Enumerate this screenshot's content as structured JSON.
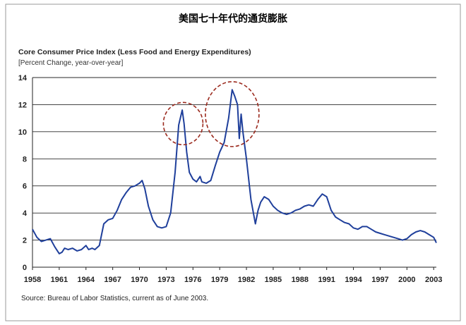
{
  "chart_data": {
    "type": "line",
    "title": "美国七十年代的通货膨胀",
    "subtitle": "Core Consumer Price Index (Less Food and Energy Expenditures)",
    "ylabel": "[Percent Change, year-over-year]",
    "source": "Source: Bureau of Labor Statistics, current as of June 2003.",
    "ylim": [
      0,
      14
    ],
    "xlim": [
      1958,
      2003.3
    ],
    "yticks": [
      "0",
      "2",
      "4",
      "6",
      "8",
      "10",
      "12",
      "14"
    ],
    "xticks": [
      "1958",
      "1961",
      "1964",
      "1967",
      "1970",
      "1973",
      "1976",
      "1979",
      "1982",
      "1985",
      "1988",
      "1991",
      "1994",
      "1997",
      "2000",
      "2003"
    ],
    "grid": true,
    "line_color": "#1f3f9b",
    "highlight_color": "#9b2a1e",
    "highlights": [
      {
        "x": 1974.9,
        "y": 10.6
      },
      {
        "x": 1980.4,
        "y": 11.3
      }
    ],
    "series": [
      {
        "x": [
          1958.0,
          1958.5,
          1959.0,
          1959.5,
          1960.0,
          1960.5,
          1961.0,
          1961.3,
          1961.6,
          1962.0,
          1962.5,
          1963.0,
          1963.5,
          1964.0,
          1964.3,
          1964.7,
          1965.0,
          1965.5,
          1966.0,
          1966.5,
          1967.0,
          1967.5,
          1968.0,
          1968.5,
          1969.0,
          1969.5,
          1970.0,
          1970.3,
          1970.6,
          1971.0,
          1971.5,
          1972.0,
          1972.5,
          1973.0,
          1973.5,
          1974.0,
          1974.4,
          1974.8,
          1975.0,
          1975.3,
          1975.6,
          1976.0,
          1976.4,
          1976.8,
          1977.0,
          1977.5,
          1978.0,
          1978.5,
          1979.0,
          1979.5,
          1980.0,
          1980.4,
          1980.7,
          1981.0,
          1981.2,
          1981.4,
          1981.6,
          1982.0,
          1982.5,
          1983.0,
          1983.3,
          1983.6,
          1984.0,
          1984.5,
          1985.0,
          1985.5,
          1986.0,
          1986.5,
          1987.0,
          1987.5,
          1988.0,
          1988.5,
          1989.0,
          1989.5,
          1990.0,
          1990.5,
          1991.0,
          1991.5,
          1992.0,
          1992.5,
          1993.0,
          1993.5,
          1994.0,
          1994.5,
          1995.0,
          1995.5,
          1996.0,
          1996.5,
          1997.0,
          1997.5,
          1998.0,
          1998.5,
          1999.0,
          1999.5,
          2000.0,
          2000.5,
          2001.0,
          2001.5,
          2002.0,
          2002.5,
          2003.0,
          2003.3
        ],
        "values": [
          2.8,
          2.2,
          1.9,
          2.0,
          2.1,
          1.5,
          1.0,
          1.1,
          1.4,
          1.3,
          1.4,
          1.2,
          1.3,
          1.6,
          1.3,
          1.4,
          1.3,
          1.6,
          3.2,
          3.5,
          3.6,
          4.2,
          5.0,
          5.5,
          5.9,
          6.0,
          6.2,
          6.4,
          5.8,
          4.5,
          3.5,
          3.0,
          2.9,
          3.0,
          4.0,
          7.0,
          10.5,
          11.6,
          10.6,
          8.5,
          7.0,
          6.5,
          6.3,
          6.7,
          6.3,
          6.2,
          6.4,
          7.5,
          8.5,
          9.2,
          11.0,
          13.1,
          12.6,
          12.0,
          9.5,
          11.3,
          10.0,
          8.0,
          5.0,
          3.2,
          4.2,
          4.8,
          5.2,
          5.0,
          4.5,
          4.2,
          4.0,
          3.9,
          4.0,
          4.2,
          4.3,
          4.5,
          4.6,
          4.5,
          5.0,
          5.4,
          5.2,
          4.2,
          3.7,
          3.5,
          3.3,
          3.2,
          2.9,
          2.8,
          3.0,
          3.0,
          2.8,
          2.6,
          2.5,
          2.4,
          2.3,
          2.2,
          2.1,
          2.0,
          2.1,
          2.4,
          2.6,
          2.7,
          2.6,
          2.4,
          2.2,
          1.8
        ]
      }
    ]
  }
}
